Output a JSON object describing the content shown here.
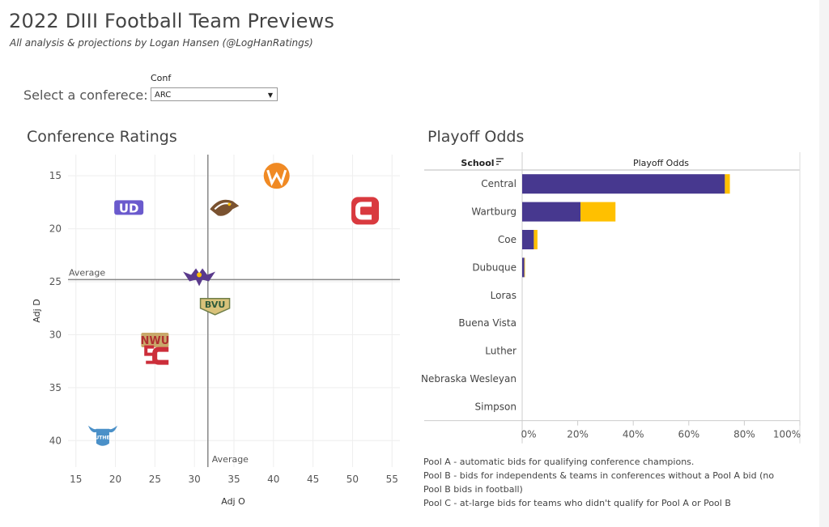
{
  "header": {
    "title": "2022 DIII Football Team Previews",
    "subtitle": "All analysis & projections by Logan Hansen (@LogHanRatings)"
  },
  "filter": {
    "label": "Select a conferece:",
    "caption": "Conf",
    "selected": "ARC"
  },
  "sections": {
    "ratings_title": "Conference Ratings",
    "odds_title": "Playoff Odds"
  },
  "colors": {
    "pool_a": "#47388f",
    "pool_c": "#ffc000",
    "reference_line": "#888888",
    "grid": "#eeeeee"
  },
  "chart_data": [
    {
      "type": "scatter",
      "title": "Conference Ratings",
      "xlabel": "Adj O",
      "ylabel": "Adj D",
      "xlim": [
        14,
        56
      ],
      "ylim": [
        13,
        42.5
      ],
      "y_reversed": true,
      "xticks": [
        "15",
        "20",
        "25",
        "30",
        "35",
        "40",
        "45",
        "50",
        "55"
      ],
      "yticks": [
        "15",
        "20",
        "25",
        "30",
        "35",
        "40"
      ],
      "grid": true,
      "reference_lines": {
        "x": {
          "value": 31.7,
          "label": "Average"
        },
        "y": {
          "value": 24.8,
          "label": "Average"
        }
      },
      "points": [
        {
          "team": "Wartburg",
          "x": 40.4,
          "y": 15.0,
          "logo": "wartburg-logo",
          "color": "#f08a24"
        },
        {
          "team": "Dubuque",
          "x": 21.7,
          "y": 18.0,
          "logo": "dubuque-logo",
          "color": "#6a5acd"
        },
        {
          "team": "Coe",
          "x": 33.8,
          "y": 18.0,
          "logo": "coe-hawk-logo",
          "color": "#7a5230"
        },
        {
          "team": "Central",
          "x": 51.6,
          "y": 18.3,
          "logo": "central-logo",
          "color": "#d93a3f"
        },
        {
          "team": "Loras",
          "x": 30.6,
          "y": 24.5,
          "logo": "loras-logo",
          "color": "#5a3a8c"
        },
        {
          "team": "Buena Vista",
          "x": 32.6,
          "y": 27.2,
          "logo": "buena-vista-logo",
          "color": "#6f7f4a"
        },
        {
          "team": "Nebraska Wesleyan",
          "x": 25.0,
          "y": 30.5,
          "logo": "nebraska-wesleyan-logo",
          "color": "#b03030"
        },
        {
          "team": "Simpson",
          "x": 25.7,
          "y": 32.0,
          "logo": "simpson-logo",
          "color": "#cc2e3a"
        },
        {
          "team": "Luther",
          "x": 18.4,
          "y": 39.5,
          "logo": "luther-logo",
          "color": "#4a90c8"
        }
      ]
    },
    {
      "type": "bar",
      "orientation": "horizontal",
      "title": "Playoff Odds",
      "row_header": "School",
      "column_header": "Playoff Odds",
      "xlim": [
        0,
        100
      ],
      "xticks": [
        "0%",
        "20%",
        "40%",
        "60%",
        "80%",
        "100%"
      ],
      "categories": [
        "Central",
        "Wartburg",
        "Coe",
        "Dubuque",
        "Loras",
        "Buena Vista",
        "Luther",
        "Nebraska Wesleyan",
        "Simpson"
      ],
      "series": [
        {
          "values": [
            73.0,
            21.0,
            4.2,
            0.8,
            0,
            0,
            0,
            0,
            0
          ]
        },
        {
          "values": [
            1.8,
            12.6,
            1.3,
            0.2,
            0,
            0,
            0,
            0,
            0
          ]
        }
      ]
    }
  ],
  "notes": [
    "Pool A - automatic bids for qualifying conference champions.",
    "Pool B - bids for independents & teams in conferences without a Pool A bid (no Pool B bids in football)",
    "Pool C - at-large bids for teams who didn't qualify for Pool A or Pool B"
  ]
}
